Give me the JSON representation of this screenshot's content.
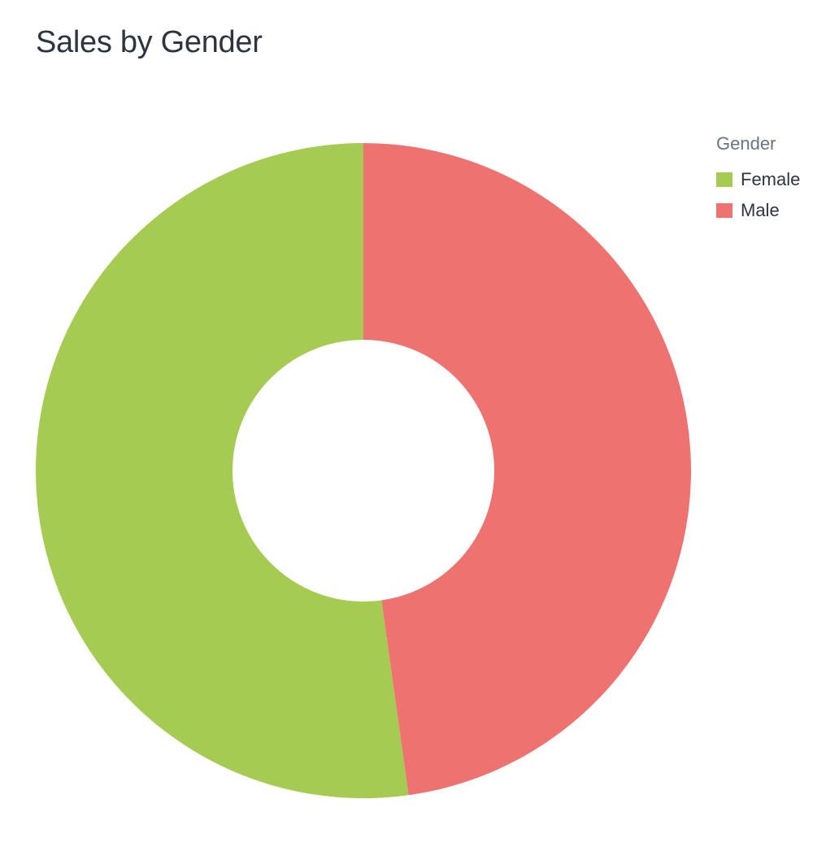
{
  "title": "Sales by Gender",
  "chart_data": {
    "type": "pie",
    "donut": true,
    "title": "Sales by Gender",
    "legend_title": "Gender",
    "legend_placement": "top-right",
    "categories": [
      "Male",
      "Female"
    ],
    "values": [
      47.8,
      52.2
    ],
    "unit": "%",
    "colors": [
      "#ee7370",
      "#a6cb52"
    ]
  },
  "legend": {
    "title": "Gender",
    "items": [
      {
        "label": "Female",
        "color": "#a6cb52"
      },
      {
        "label": "Male",
        "color": "#ee7370"
      }
    ]
  }
}
